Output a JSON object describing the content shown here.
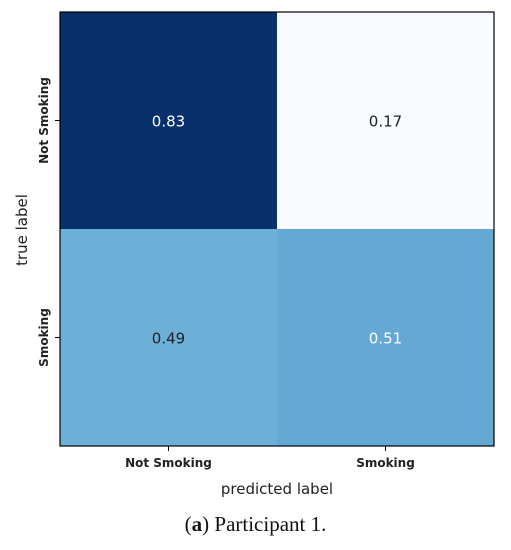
{
  "chart_data": {
    "type": "heatmap",
    "title": "",
    "xlabel": "predicted label",
    "ylabel": "true label",
    "x_categories": [
      "Not Smoking",
      "Smoking"
    ],
    "y_categories": [
      "Not Smoking",
      "Smoking"
    ],
    "values": [
      [
        0.83,
        0.17
      ],
      [
        0.49,
        0.51
      ]
    ],
    "value_labels": [
      [
        "0.83",
        "0.17"
      ],
      [
        "0.49",
        "0.51"
      ]
    ],
    "colormap": "Blues",
    "cell_colors": [
      [
        "#08306b",
        "#f7fbff"
      ],
      [
        "#6cb0d8",
        "#64a8d4"
      ]
    ],
    "text_colors": [
      [
        "#ffffff",
        "#222222"
      ],
      [
        "#222222",
        "#ffffff"
      ]
    ],
    "grid": false
  },
  "caption": {
    "paren_open": "(",
    "label": "a",
    "rest": ") Participant 1."
  }
}
